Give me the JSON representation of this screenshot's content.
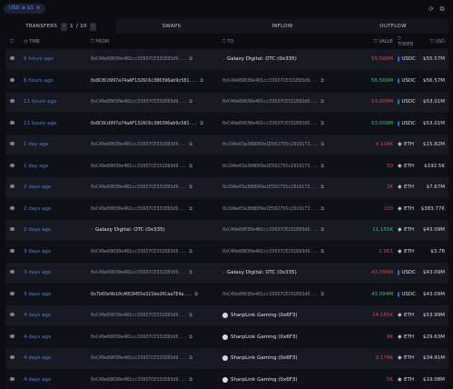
{
  "filter_pill": {
    "label": "USD ≥ $1",
    "close": "×"
  },
  "top_icons": [
    "refresh-icon",
    "copy-icon"
  ],
  "tabs": {
    "transfers": "TRANSFERS",
    "page_current": "1",
    "page_total": "/ 10",
    "swaps": "SWAPS",
    "inflow": "INFLOW",
    "outflow": "OUTFLOW"
  },
  "columns": {
    "time": "TIME",
    "from": "FROM",
    "to": "TO",
    "value": "VALUE",
    "token": "TOKEN",
    "usd": "USD"
  },
  "rows": [
    {
      "time": "5 hours ago",
      "from": "0xC49e89030e481cc33937CE331E83d9...",
      "to": "Galaxy Digital: OTC (0x335)",
      "to_type": "entity",
      "value": "55.569M",
      "value_color": "red",
      "token": "USDC",
      "usd": "$55.57M"
    },
    {
      "time": "6 hours ago",
      "from": "0x8C8Cd997a74aAF1326C6c386396ab9c581...",
      "from_type": "bright",
      "to": "0xC49e89030e481cc33937CE331E83d9...",
      "to_type": "addr",
      "value": "56.569M",
      "value_color": "green",
      "token": "USDC",
      "usd": "$56.57M"
    },
    {
      "time": "11 hours ago",
      "from": "0xC49e89030e481cc33937CE331E83d9...",
      "to": "0xC49e89030e481cc33937CE331E83d9...",
      "to_type": "addr",
      "value": "53.009M",
      "value_color": "red",
      "token": "USDC",
      "usd": "$53.01M"
    },
    {
      "time": "11 hours ago",
      "from": "0x8C8Cd997a74aAF1326C6c386396ab9c581...",
      "from_type": "bright",
      "to": "0xC49e89030e481cc33937CE331E83d9...",
      "to_type": "addr",
      "value": "53.009M",
      "value_color": "green",
      "token": "USDC",
      "usd": "$53.01M"
    },
    {
      "time": "1 day ago",
      "from": "0xC49e89030e481cc33937CE331E83d9...",
      "to": "0x10Ae03a388D09e1E502755c2919173...",
      "to_type": "addr",
      "value": "4.109K",
      "value_color": "red",
      "token": "ETH",
      "usd": "$15.82M"
    },
    {
      "time": "1 day ago",
      "from": "0xC49e89030e481cc33937CE331E83d9...",
      "to": "0x10Ae03a388D09e1E502755c2919173...",
      "to_type": "addr",
      "value": "50",
      "value_color": "red",
      "token": "ETH",
      "usd": "$192.5K"
    },
    {
      "time": "2 days ago",
      "from": "0xC49e89030e481cc33937CE331E83d9...",
      "to": "0x10Ae03a388D09e1E502755c2919173...",
      "to_type": "addr",
      "value": "2K",
      "value_color": "red",
      "token": "ETH",
      "usd": "$7.67M"
    },
    {
      "time": "2 days ago",
      "from": "0xC49e89030e481cc33937CE331E83d9...",
      "to": "0x10Ae03a388D09e1E502755c2919173...",
      "to_type": "addr",
      "value": "100",
      "value_color": "red",
      "token": "ETH",
      "usd": "$383.77K"
    },
    {
      "time": "2 days ago",
      "from": "Galaxy Digital: OTC (0x335)",
      "from_type": "entity",
      "to": "0xC49e89030e481cc33937CE331E83d9...",
      "to_type": "addr",
      "value": "11.155K",
      "value_color": "green",
      "token": "ETH",
      "usd": "$43.09M"
    },
    {
      "time": "3 days ago",
      "from": "0xC49e89030e481cc33937CE331E83d9...",
      "to": "0xC49e89030e481cc33937CE331E83d9...",
      "to_type": "addr",
      "value": "1.001",
      "value_color": "red",
      "token": "ETH",
      "usd": "$3.78"
    },
    {
      "time": "3 days ago",
      "from": "0xC49e89030e481cc33937CE331E83d9...",
      "to": "Galaxy Digital: OTC (0x335)",
      "to_type": "entity",
      "value": "43.094M",
      "value_color": "red",
      "token": "USDC",
      "usd": "$43.09M"
    },
    {
      "time": "3 days ago",
      "from": "0x7b65e9b10cA0C8455e321be20Caa7E4a...",
      "from_type": "bright",
      "to": "0xC49e89030e481cc33937CE331E83d9...",
      "to_type": "addr",
      "value": "43.094M",
      "value_color": "green",
      "token": "USDC",
      "usd": "$43.09M"
    },
    {
      "time": "4 days ago",
      "from": "0xC49e89030e481cc33937CE331E83d9...",
      "to": "SharpLink Gaming (0x6F3)",
      "to_type": "entity",
      "value": "14.165K",
      "value_color": "red",
      "token": "ETH",
      "usd": "$53.99M"
    },
    {
      "time": "4 days ago",
      "from": "0xC49e89030e481cc33937CE331E83d9...",
      "to": "SharpLink Gaming (0x6F3)",
      "to_type": "entity",
      "value": "8K",
      "value_color": "red",
      "token": "ETH",
      "usd": "$29.63M"
    },
    {
      "time": "4 days ago",
      "from": "0xC49e89030e481cc33937CE331E83d9...",
      "to": "SharpLink Gaming (0x6F3)",
      "to_type": "entity",
      "value": "9.176K",
      "value_color": "red",
      "token": "ETH",
      "usd": "$34.91M"
    },
    {
      "time": "4 days ago",
      "from": "0xC49e89030e481cc33937CE331E83d9...",
      "to": "SharpLink Gaming (0x6F3)",
      "to_type": "entity",
      "value": "5K",
      "value_color": "red",
      "token": "ETH",
      "usd": "$19.08M"
    }
  ]
}
